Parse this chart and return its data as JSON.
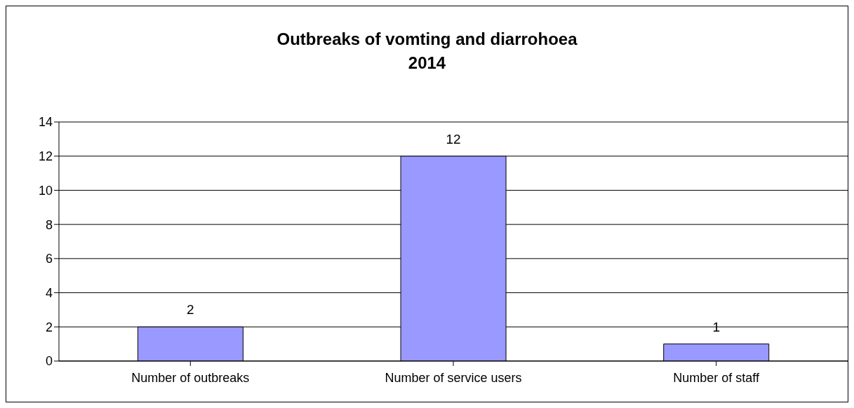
{
  "chart_data": {
    "type": "bar",
    "title": "Outbreaks of vomting and diarrohoea\n2014",
    "categories": [
      "Number of outbreaks",
      "Number of service users",
      "Number of staff"
    ],
    "values": [
      2,
      12,
      1
    ],
    "color": "#9999ff",
    "ylim": [
      0,
      14
    ],
    "yticks": [
      0,
      2,
      4,
      6,
      8,
      10,
      12,
      14
    ],
    "grid": "y",
    "data_labels": true
  }
}
